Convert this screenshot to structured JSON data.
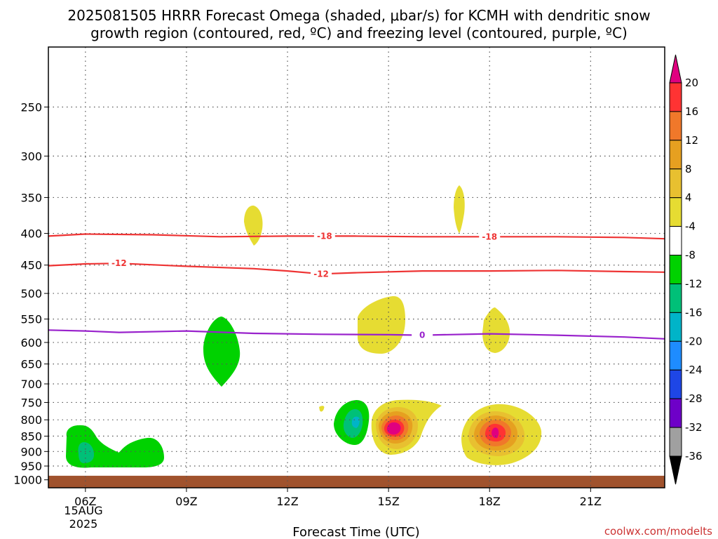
{
  "chart_data": {
    "type": "heatmap",
    "title_line1": "2025081505 HRRR Forecast Omega (shaded, μbar/s) for KCMH with dendritic snow",
    "title_line2": "growth region (contoured, red, ºC) and freezing level (contoured, purple, ºC)",
    "xlabel": "Forecast Time (UTC)",
    "ylabel": "",
    "x_domain_hours": [
      4.9,
      23.2
    ],
    "x_ticks": [
      {
        "hour": 6,
        "label": "06Z"
      },
      {
        "hour": 9,
        "label": "09Z"
      },
      {
        "hour": 12,
        "label": "12Z"
      },
      {
        "hour": 15,
        "label": "15Z"
      },
      {
        "hour": 18,
        "label": "18Z"
      },
      {
        "hour": 21,
        "label": "21Z"
      }
    ],
    "date_label": [
      "15AUG",
      "2025"
    ],
    "y_scale": "log",
    "y_domain_hpa": [
      200,
      1030
    ],
    "y_ticks": [
      250,
      300,
      350,
      400,
      450,
      500,
      550,
      600,
      650,
      700,
      750,
      800,
      850,
      900,
      950,
      1000
    ],
    "ground_band_hpa": [
      985,
      1030
    ],
    "ground_color": "#a0522d",
    "colorbar": {
      "labels": [
        "20",
        "16",
        "12",
        "8",
        "4",
        "-4",
        "-8",
        "-12",
        "-16",
        "-20",
        "-24",
        "-28",
        "-32",
        "-36"
      ],
      "colors": [
        "#ff3333",
        "#f0782a",
        "#e6a020",
        "#e8c030",
        "#e6dc32",
        "#ffffff",
        "#00d200",
        "#00c078",
        "#00b4c8",
        "#1e8cff",
        "#1e46e6",
        "#6e00c8",
        "#a000c8",
        "#a0a0a0"
      ],
      "top_color": "#e00080",
      "bottom_color": "#000000"
    },
    "contours": [
      {
        "name": "-18",
        "color": "#ee3333",
        "points": [
          [
            4.9,
            404
          ],
          [
            6,
            401
          ],
          [
            8,
            402
          ],
          [
            10,
            405
          ],
          [
            12,
            404
          ],
          [
            14,
            404
          ],
          [
            16,
            405
          ],
          [
            18,
            405
          ],
          [
            20,
            405
          ],
          [
            22,
            406
          ],
          [
            23.2,
            408
          ]
        ],
        "labels": [
          {
            "hour": 13.1,
            "hpa": 404
          },
          {
            "hour": 18.0,
            "hpa": 405
          }
        ]
      },
      {
        "name": "-12",
        "color": "#ee3333",
        "points": [
          [
            4.9,
            451
          ],
          [
            6,
            448
          ],
          [
            7,
            447
          ],
          [
            9,
            452
          ],
          [
            11,
            456
          ],
          [
            12,
            460
          ],
          [
            13,
            465
          ],
          [
            14,
            463
          ],
          [
            16,
            460
          ],
          [
            18,
            460
          ],
          [
            20,
            459
          ],
          [
            22,
            461
          ],
          [
            23.2,
            462
          ]
        ],
        "labels": [
          {
            "hour": 7.0,
            "hpa": 447
          },
          {
            "hour": 13.0,
            "hpa": 465
          }
        ]
      },
      {
        "name": "0",
        "color": "#9922cc",
        "points": [
          [
            4.9,
            573
          ],
          [
            6,
            575
          ],
          [
            7,
            578
          ],
          [
            9,
            575
          ],
          [
            11,
            580
          ],
          [
            13,
            582
          ],
          [
            15,
            583
          ],
          [
            16,
            584
          ],
          [
            18,
            581
          ],
          [
            20,
            584
          ],
          [
            22,
            588
          ],
          [
            23.2,
            592
          ]
        ],
        "labels": [
          {
            "hour": 16.0,
            "hpa": 584
          }
        ]
      }
    ],
    "shaded_regions": [
      {
        "name": "rising-06z-low",
        "value_range": [
          -8,
          -4
        ],
        "color": "#00d200",
        "center": [
          6.3,
          900
        ]
      },
      {
        "name": "rising-06z-core",
        "value_range": [
          -12,
          -8
        ],
        "color": "#00c078",
        "center": [
          6.1,
          912
        ]
      },
      {
        "name": "rising-08z-low",
        "value_range": [
          -8,
          -4
        ],
        "color": "#00d200",
        "center": [
          7.7,
          925
        ]
      },
      {
        "name": "rising-10z-mid",
        "value_range": [
          -8,
          -4
        ],
        "color": "#00d200",
        "center": [
          10.0,
          630
        ]
      },
      {
        "name": "sinking-11z-upper",
        "value_range": [
          4,
          8
        ],
        "color": "#e6dc32",
        "center": [
          10.9,
          398
        ]
      },
      {
        "name": "sinking-13z-small",
        "value_range": [
          4,
          8
        ],
        "color": "#e6dc32",
        "center": [
          12.9,
          775
        ]
      },
      {
        "name": "rising-14z-low",
        "value_range": [
          -8,
          -4
        ],
        "color": "#00d200",
        "center": [
          13.9,
          818
        ]
      },
      {
        "name": "rising-14z-core",
        "value_range": [
          -12,
          -8
        ],
        "color": "#00c078",
        "center": [
          13.9,
          815
        ]
      },
      {
        "name": "rising-14z-inner",
        "value_range": [
          -16,
          -12
        ],
        "color": "#00b4c8",
        "center": [
          13.9,
          820
        ]
      },
      {
        "name": "sinking-15z-mid",
        "value_range": [
          4,
          8
        ],
        "color": "#e6dc32",
        "center": [
          15.0,
          585
        ]
      },
      {
        "name": "sinking-15z-low",
        "value_range": [
          4,
          20
        ],
        "color": "#e6dc32",
        "center": [
          15.1,
          835
        ]
      },
      {
        "name": "sinking-15z-max",
        "value_range": [
          16,
          20
        ],
        "color": "#e00080",
        "center": [
          15.0,
          840
        ]
      },
      {
        "name": "sinking-17z-upper",
        "value_range": [
          4,
          8
        ],
        "color": "#e6dc32",
        "center": [
          16.9,
          378
        ]
      },
      {
        "name": "sinking-18z-mid",
        "value_range": [
          4,
          8
        ],
        "color": "#e6dc32",
        "center": [
          18.0,
          590
        ]
      },
      {
        "name": "sinking-18z-low",
        "value_range": [
          4,
          20
        ],
        "color": "#e6dc32",
        "center": [
          18.1,
          865
        ]
      },
      {
        "name": "sinking-18z-max",
        "value_range": [
          16,
          20
        ],
        "color": "#e00080",
        "center": [
          18.0,
          860
        ]
      }
    ]
  },
  "footer": {
    "watermark": "coolwx.com/modelts"
  }
}
